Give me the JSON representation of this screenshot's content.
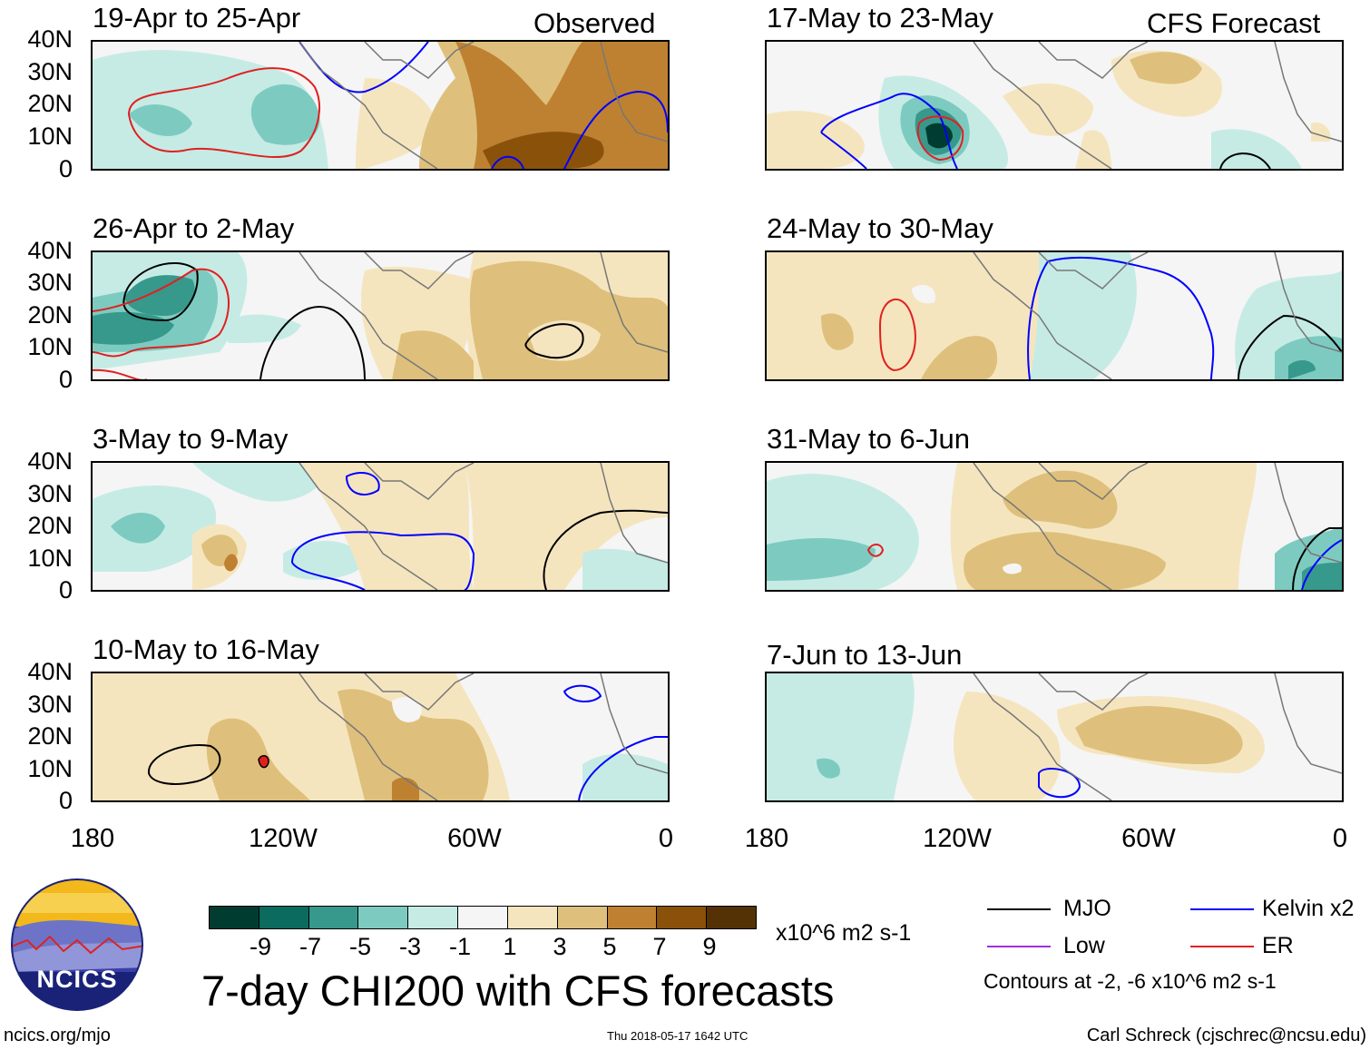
{
  "figure": {
    "title": "7-day CHI200 with CFS forecasts",
    "units": "x10^6 m2 s-1",
    "website": "ncics.org/mjo",
    "timestamp": "Thu 2018-05-17 1642 UTC",
    "author": "Carl Schreck (cjschrec@ncsu.edu)",
    "logo_text": "NCICS",
    "contour_note": "Contours at -2, -6 x10^6 m2 s-1"
  },
  "columns": {
    "observed_label": "Observed",
    "forecast_label": "CFS Forecast"
  },
  "panels_left": [
    {
      "title": "19-Apr to 25-Apr"
    },
    {
      "title": "26-Apr to 2-May"
    },
    {
      "title": "3-May to 9-May"
    },
    {
      "title": "10-May to 16-May"
    }
  ],
  "panels_right": [
    {
      "title": "17-May to 23-May"
    },
    {
      "title": "24-May to 30-May"
    },
    {
      "title": "31-May to 6-Jun"
    },
    {
      "title": "7-Jun to 13-Jun"
    }
  ],
  "axes": {
    "lat_ticks": [
      "40N",
      "30N",
      "20N",
      "10N",
      "0"
    ],
    "lon_ticks": [
      "180",
      "120W",
      "60W",
      "0"
    ]
  },
  "colorbar": {
    "labels": [
      "-9",
      "-7",
      "-5",
      "-3",
      "-1",
      "1",
      "3",
      "5",
      "7",
      "9"
    ],
    "colors": [
      "#013c30",
      "#0b6b5e",
      "#37988c",
      "#7dcbc0",
      "#c6ebe5",
      "#f5f5f5",
      "#f5e5bf",
      "#dec07c",
      "#be8131",
      "#8a510a",
      "#553206"
    ]
  },
  "legend": {
    "mjo": {
      "label": "MJO",
      "color": "#000000"
    },
    "kelvin": {
      "label": "Kelvin x2",
      "color": "#0000ff"
    },
    "low": {
      "label": "Low",
      "color": "#a030e0"
    },
    "er": {
      "label": "ER",
      "color": "#e02020"
    }
  }
}
